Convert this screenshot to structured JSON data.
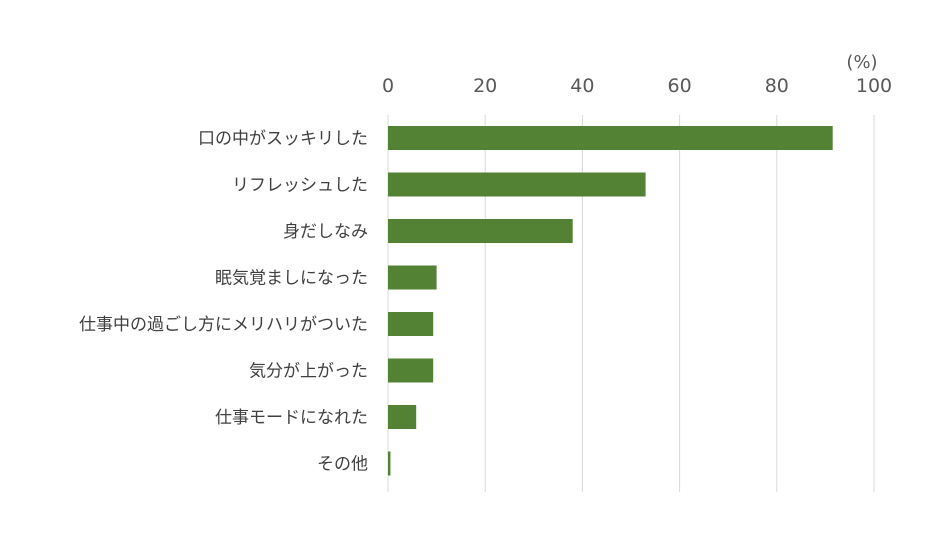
{
  "chart_data": {
    "type": "bar",
    "orientation": "horizontal",
    "unit": "(%)",
    "categories": [
      "口の中がスッキリした",
      "リフレッシュした",
      "身だしなみ",
      "眠気覚ましになった",
      "仕事中の過ごし方にメリハリがついた",
      "気分が上がった",
      "仕事モードになれた",
      "その他"
    ],
    "values": [
      91.5,
      53,
      38,
      10,
      9.3,
      9.3,
      5.8,
      0.5
    ],
    "xlim": [
      0,
      100
    ],
    "ticks": [
      0,
      20,
      40,
      60,
      80,
      100
    ],
    "tick_labels": [
      "0",
      "20",
      "40",
      "60",
      "80",
      "100"
    ],
    "grid": true,
    "legend": "none",
    "bar_color": "#548235",
    "grid_color": "#d9d9d9"
  }
}
